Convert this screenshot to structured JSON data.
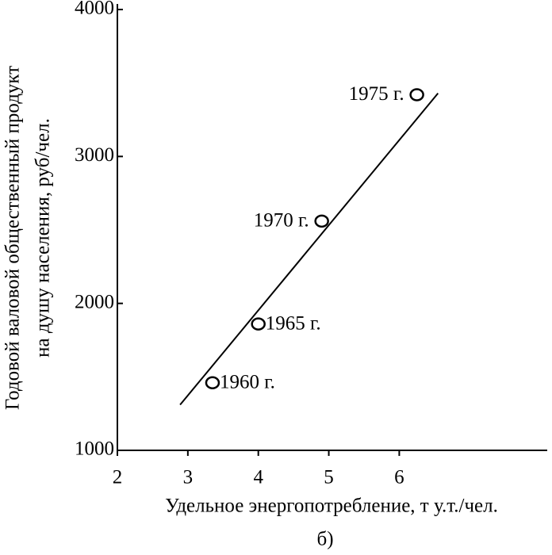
{
  "chart_data": {
    "type": "scatter",
    "x_label": "Удельное энергопотребление, т у.т./чел.",
    "y_label": [
      "Годовой валовой общественный продукт",
      "на душу населения, руб/чел."
    ],
    "caption": "б)",
    "xlim": [
      2,
      8.1
    ],
    "ylim": [
      1000,
      4000
    ],
    "xticks": [
      2,
      3,
      4,
      5,
      6
    ],
    "yticks": [
      1000,
      2000,
      3000,
      4000
    ],
    "series": [
      {
        "x": [
          3.35,
          4.0,
          4.9,
          6.25
        ],
        "values": [
          1460,
          1860,
          2560,
          3420
        ],
        "point_labels": [
          "1960 г.",
          "1965 г.",
          "1970 г.",
          "1975 г."
        ]
      }
    ],
    "trend_line": {
      "x": [
        2.89,
        6.55
      ],
      "values": [
        1310,
        3430
      ]
    }
  }
}
